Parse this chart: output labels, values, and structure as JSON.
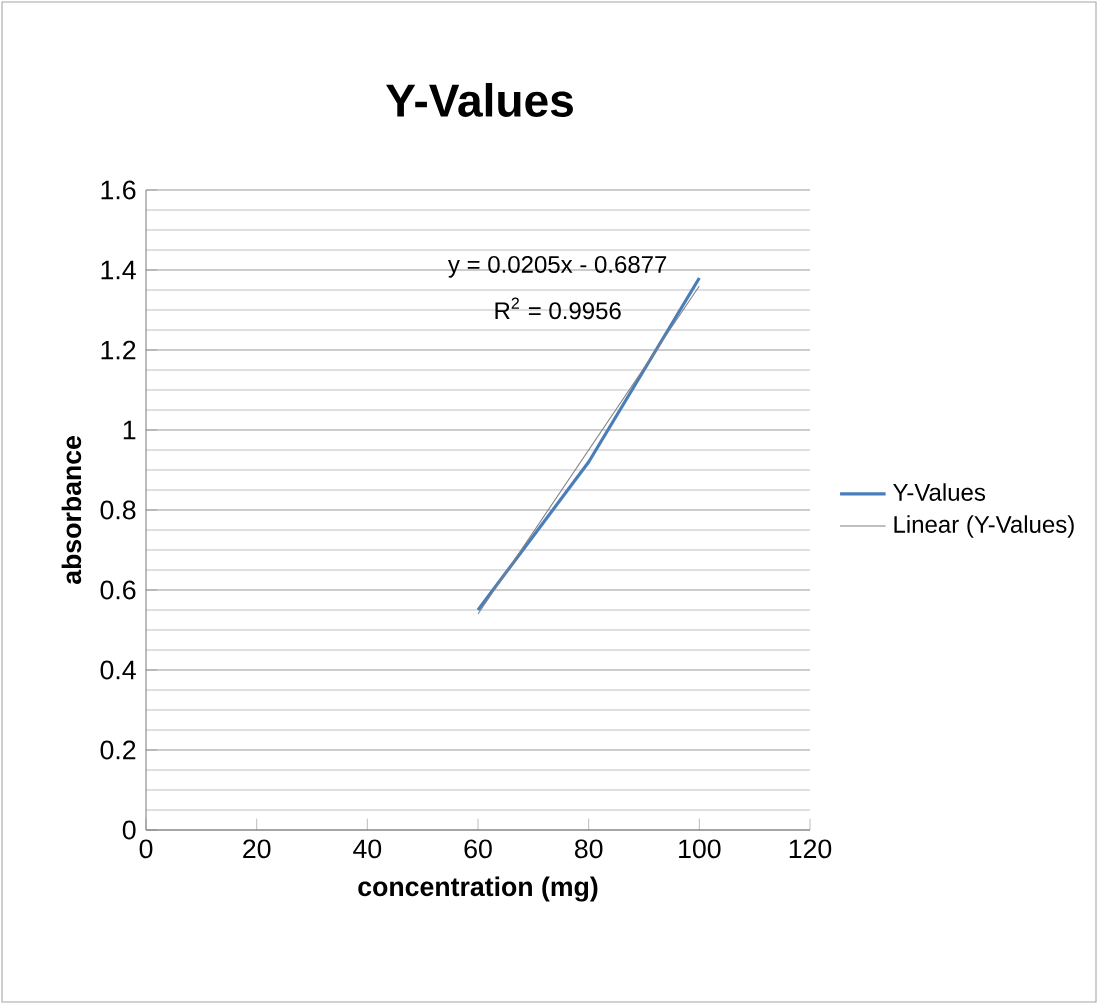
{
  "chart_data": {
    "type": "line",
    "title": "Y-Values",
    "xlabel": "concentration (mg)",
    "ylabel": "absorbance",
    "series": [
      {
        "name": "Y-Values",
        "color": "#4a7ebb",
        "x": [
          60,
          80,
          100
        ],
        "values": [
          0.55,
          0.92,
          1.38
        ]
      },
      {
        "name": "Linear (Y-Values)",
        "color": "#808080",
        "x": [
          60,
          100
        ],
        "values": [
          0.54,
          1.36
        ]
      }
    ],
    "xlim": [
      0,
      120
    ],
    "xticks": [
      0,
      20,
      40,
      60,
      80,
      100,
      120
    ],
    "ylim": [
      0,
      1.6
    ],
    "yticks": [
      0,
      0.2,
      0.4,
      0.6,
      0.8,
      1,
      1.2,
      1.4,
      1.6
    ],
    "annotations": [
      "y = 0.0205x - 0.6877",
      "R$^{2}$ = 0.9956"
    ],
    "grid": "y",
    "legend": "right",
    "marker": "none",
    "line_style": "solid"
  }
}
